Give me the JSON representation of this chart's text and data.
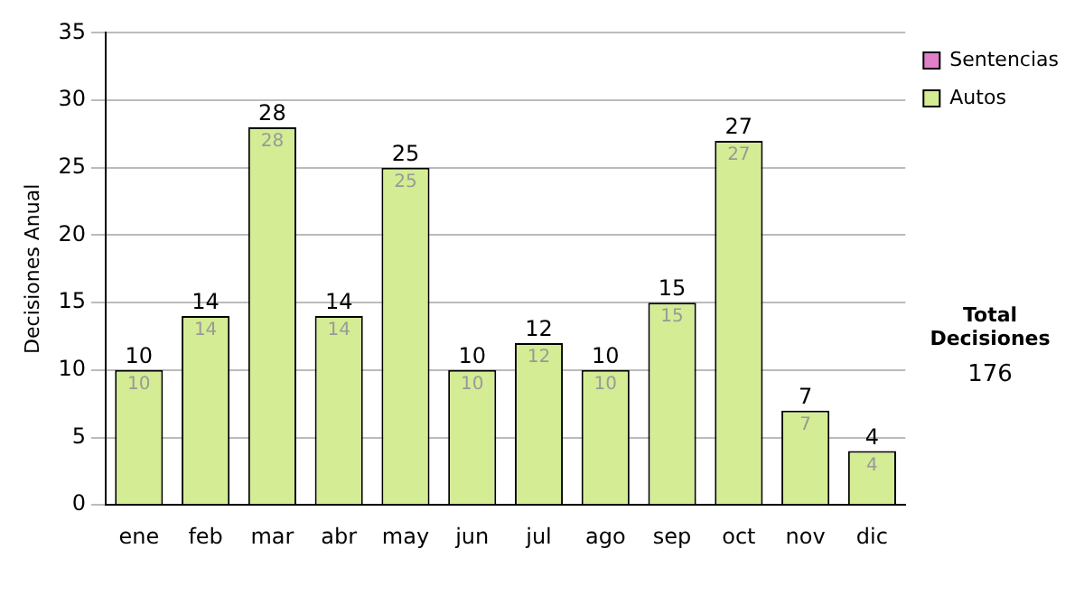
{
  "chart_data": {
    "type": "bar",
    "ylabel": "Decisiones Anual",
    "categories": [
      "ene",
      "feb",
      "mar",
      "abr",
      "may",
      "jun",
      "jul",
      "ago",
      "sep",
      "oct",
      "nov",
      "dic"
    ],
    "series": [
      {
        "name": "Sentencias",
        "color": "#e080c8",
        "values": [
          0,
          0,
          0,
          0,
          0,
          0,
          0,
          0,
          0,
          0,
          0,
          0
        ]
      },
      {
        "name": "Autos",
        "color": "#d4ec94",
        "values": [
          10,
          14,
          28,
          14,
          25,
          10,
          12,
          10,
          15,
          27,
          7,
          4
        ],
        "value_labels": [
          "10",
          "14",
          "28",
          "14",
          "25",
          "10",
          "12",
          "10",
          "15",
          "27",
          "7",
          "4"
        ]
      }
    ],
    "stacked": true,
    "totals": [
      "10",
      "14",
      "28",
      "14",
      "25",
      "10",
      "12",
      "10",
      "15",
      "27",
      "7",
      "4"
    ],
    "ylim": [
      0,
      35
    ],
    "yticks": [
      0,
      5,
      10,
      15,
      20,
      25,
      30,
      35
    ],
    "grid": "y",
    "legend": "right",
    "annotations": [
      "Total Decisiones",
      "176"
    ]
  }
}
